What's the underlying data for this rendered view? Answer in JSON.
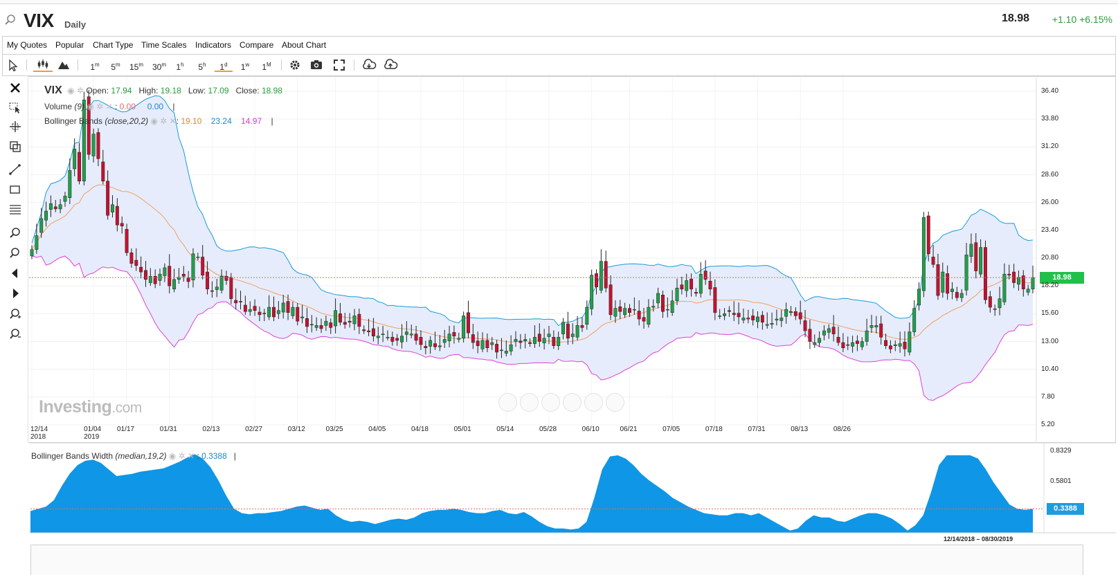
{
  "header": {
    "symbol": "VIX",
    "period": "Daily",
    "last": "18.98",
    "change": "+1.10 +6.15%"
  },
  "menu": [
    "My Quotes",
    "Popular",
    "Chart Type",
    "Time Scales",
    "Indicators",
    "Compare",
    "About Chart"
  ],
  "toolbar": {
    "intervals": [
      "1m",
      "5m",
      "15m",
      "30m",
      "1h",
      "5h",
      "1d",
      "1w",
      "1M"
    ],
    "active_interval": "1d"
  },
  "legend": {
    "symbol": "VIX",
    "open_label": "Open:",
    "open": "17.94",
    "high_label": "High:",
    "high": "19.18",
    "low_label": "Low:",
    "low": "17.09",
    "close_label": "Close:",
    "close": "18.98",
    "volume_name": "Volume",
    "volume_params": "(9)",
    "volume_v1": "0.00",
    "volume_v2": "0.00",
    "bb_name": "Bollinger Bands",
    "bb_params": "(close,20,2)",
    "bb_mid": "19.10",
    "bb_upper": "23.24",
    "bb_lower": "14.97"
  },
  "panel": {
    "name": "Bollinger Bands Width",
    "params": "(median,19,2)",
    "value": "0.3388",
    "y_labels": [
      "0.8329",
      "0.5801"
    ],
    "current": "0.3388"
  },
  "watermark": {
    "brand": "Investing",
    "suffix": ".com"
  },
  "range_label": "12/14/2018 – 08/30/2019",
  "price_tag": "18.98",
  "colors": {
    "up": "#21a04a",
    "down": "#c8102e",
    "upper_band": "#1a9ad8",
    "lower_band": "#e040d8",
    "mid_band": "#f0a060",
    "band_fill": "#e6ecfb",
    "bbw_fill": "#0f96e6"
  },
  "chart_data": {
    "type": "candlestick",
    "title": "VIX",
    "y_ticks": [
      36.4,
      33.8,
      31.2,
      28.6,
      26.0,
      23.4,
      20.8,
      18.2,
      15.6,
      13.0,
      10.4,
      7.8,
      5.2
    ],
    "y_tick_labels": [
      "36.40",
      "33.80",
      "31.20",
      "28.60",
      "26.00",
      "23.40",
      "20.80",
      "18.20",
      "15.60",
      "13.00",
      "10.40",
      "7.80",
      "5.20"
    ],
    "x_ticks": [
      {
        "label": "12/14",
        "sub": "2018"
      },
      {
        "label": "01/04",
        "sub": "2019"
      },
      {
        "label": "01/17",
        "sub": ""
      },
      {
        "label": "01/31",
        "sub": ""
      },
      {
        "label": "02/13",
        "sub": ""
      },
      {
        "label": "02/27",
        "sub": ""
      },
      {
        "label": "03/12",
        "sub": ""
      },
      {
        "label": "03/25",
        "sub": ""
      },
      {
        "label": "04/05",
        "sub": ""
      },
      {
        "label": "04/18",
        "sub": ""
      },
      {
        "label": "05/01",
        "sub": ""
      },
      {
        "label": "05/14",
        "sub": ""
      },
      {
        "label": "05/28",
        "sub": ""
      },
      {
        "label": "06/10",
        "sub": ""
      },
      {
        "label": "06/21",
        "sub": ""
      },
      {
        "label": "07/05",
        "sub": ""
      },
      {
        "label": "07/18",
        "sub": ""
      },
      {
        "label": "07/31",
        "sub": ""
      },
      {
        "label": "08/13",
        "sub": ""
      },
      {
        "label": "08/26",
        "sub": ""
      }
    ],
    "x_tick_index": [
      0,
      13,
      20,
      29,
      38,
      47,
      56,
      64,
      73,
      82,
      91,
      100,
      109,
      118,
      126,
      135,
      144,
      153,
      162,
      171
    ],
    "closes": [
      21.6,
      22.9,
      24.5,
      25.2,
      25.9,
      25.4,
      25.8,
      26.6,
      29.0,
      31.0,
      28.0,
      35.6,
      30.5,
      32.4,
      30.1,
      28.0,
      24.8,
      25.8,
      23.9,
      23.8,
      21.3,
      20.3,
      20.1,
      19.5,
      18.8,
      19.1,
      18.4,
      19.3,
      19.9,
      18.2,
      18.8,
      19.0,
      19.1,
      18.6,
      21.2,
      20.9,
      19.2,
      17.9,
      17.7,
      18.1,
      19.1,
      18.7,
      17.0,
      16.6,
      16.7,
      15.8,
      16.0,
      15.9,
      15.5,
      15.6,
      16.2,
      15.3,
      15.9,
      16.6,
      15.7,
      16.2,
      14.9,
      15.3,
      14.4,
      14.6,
      14.5,
      14.2,
      14.9,
      14.3,
      15.9,
      14.8,
      14.6,
      14.8,
      15.4,
      14.4,
      14.0,
      13.9,
      13.5,
      13.5,
      13.7,
      13.4,
      13.0,
      13.1,
      13.5,
      13.9,
      13.7,
      13.1,
      12.7,
      12.4,
      13.1,
      12.5,
      12.6,
      13.2,
      13.7,
      13.5,
      13.3,
      15.4,
      13.8,
      12.9,
      12.6,
      13.1,
      12.4,
      12.9,
      12.0,
      12.2,
      12.1,
      12.7,
      13.2,
      12.9,
      13.2,
      12.8,
      13.4,
      13.0,
      13.3,
      13.7,
      12.6,
      13.4,
      14.8,
      13.3,
      13.7,
      14.5,
      14.3,
      16.2,
      19.2,
      18.1,
      20.5,
      18.0,
      15.5,
      16.1,
      15.8,
      16.1,
      15.7,
      16.0,
      15.1,
      14.9,
      16.2,
      16.3,
      17.5,
      15.8,
      16.0,
      16.8,
      18.0,
      17.9,
      18.7,
      17.9,
      17.5,
      19.3,
      18.8,
      17.9,
      15.7,
      15.4,
      15.6,
      15.8,
      15.5,
      15.3,
      15.2,
      15.1,
      15.0,
      15.3,
      14.8,
      14.6,
      14.7,
      15.1,
      15.2,
      16.0,
      15.8,
      15.4,
      15.1,
      14.0,
      13.0,
      12.9,
      13.3,
      14.0,
      14.2,
      13.7,
      12.9,
      12.4,
      12.7,
      12.9,
      12.8,
      13.0,
      14.0,
      14.5,
      14.5,
      13.4,
      12.6,
      12.3,
      12.7,
      12.8,
      12.3,
      13.9,
      16.1,
      17.9,
      24.6,
      21.2,
      20.2,
      17.3,
      19.5,
      17.5,
      17.9,
      17.1,
      17.5,
      21.1,
      22.1,
      19.6,
      21.8,
      16.9,
      16.2,
      16.0,
      17.0,
      19.3,
      19.2,
      18.5,
      19.0,
      17.9,
      17.9,
      18.98
    ],
    "price_range": [
      5.2,
      36.4
    ],
    "bbw": [
      0.32,
      0.34,
      0.36,
      0.42,
      0.55,
      0.66,
      0.74,
      0.78,
      0.79,
      0.76,
      0.7,
      0.64,
      0.65,
      0.66,
      0.68,
      0.69,
      0.7,
      0.71,
      0.74,
      0.77,
      0.81,
      0.84,
      0.8,
      0.72,
      0.6,
      0.46,
      0.34,
      0.3,
      0.29,
      0.3,
      0.3,
      0.31,
      0.32,
      0.34,
      0.36,
      0.37,
      0.35,
      0.33,
      0.34,
      0.28,
      0.24,
      0.22,
      0.23,
      0.22,
      0.2,
      0.22,
      0.24,
      0.25,
      0.24,
      0.26,
      0.3,
      0.32,
      0.33,
      0.33,
      0.34,
      0.33,
      0.31,
      0.3,
      0.3,
      0.32,
      0.33,
      0.3,
      0.29,
      0.31,
      0.27,
      0.22,
      0.18,
      0.16,
      0.16,
      0.15,
      0.16,
      0.22,
      0.44,
      0.7,
      0.82,
      0.83,
      0.8,
      0.74,
      0.66,
      0.6,
      0.55,
      0.5,
      0.44,
      0.4,
      0.36,
      0.33,
      0.3,
      0.29,
      0.28,
      0.28,
      0.3,
      0.3,
      0.28,
      0.3,
      0.26,
      0.22,
      0.18,
      0.14,
      0.16,
      0.23,
      0.28,
      0.26,
      0.26,
      0.23,
      0.22,
      0.25,
      0.28,
      0.3,
      0.3,
      0.28,
      0.25,
      0.2,
      0.14,
      0.19,
      0.28,
      0.49,
      0.74,
      0.83,
      0.83,
      0.83,
      0.83,
      0.8,
      0.7,
      0.58,
      0.48,
      0.38,
      0.34,
      0.33,
      0.3388
    ]
  }
}
